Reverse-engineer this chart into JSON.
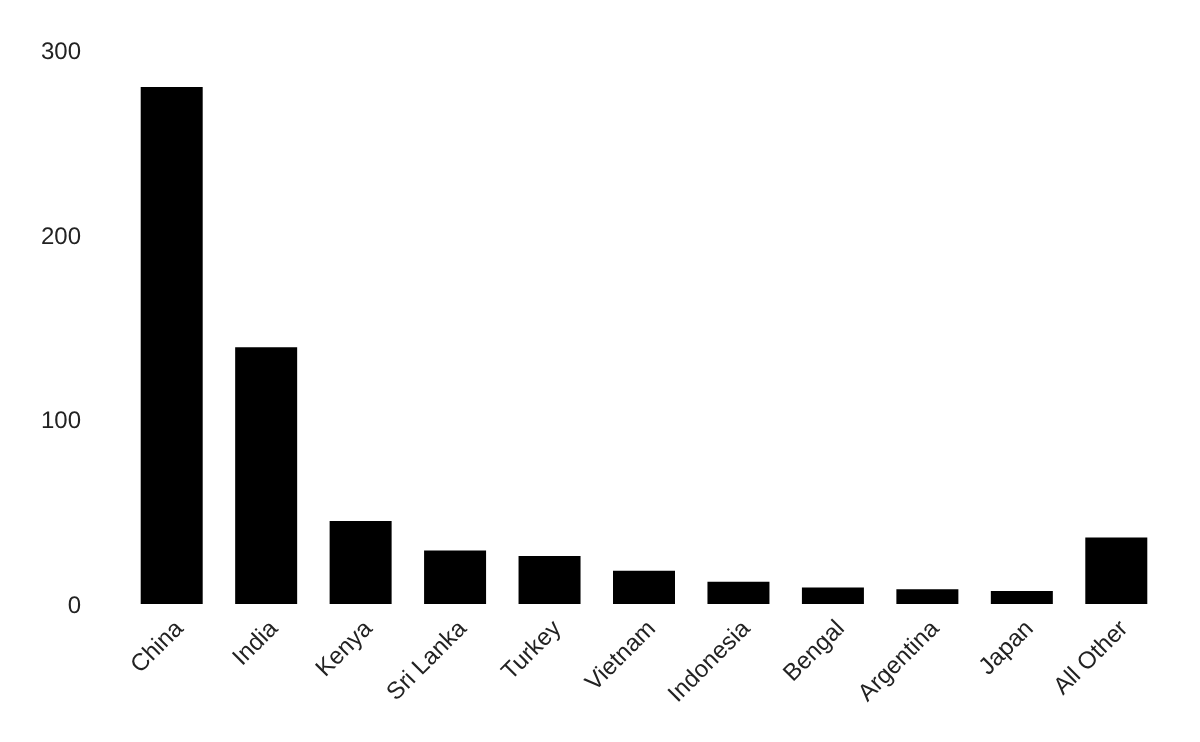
{
  "chart_data": {
    "type": "bar",
    "categories": [
      "China",
      "India",
      "Kenya",
      "Sri Lanka",
      "Turkey",
      "Vietnam",
      "Indonesia",
      "Bengal",
      "Argentina",
      "Japan",
      "All Other"
    ],
    "values": [
      280,
      139,
      45,
      29,
      26,
      18,
      12,
      9,
      8,
      7,
      36
    ],
    "color": "#000000",
    "ylim": [
      0,
      300
    ],
    "yticks": [
      0,
      100,
      200,
      300
    ],
    "grid": false
  }
}
